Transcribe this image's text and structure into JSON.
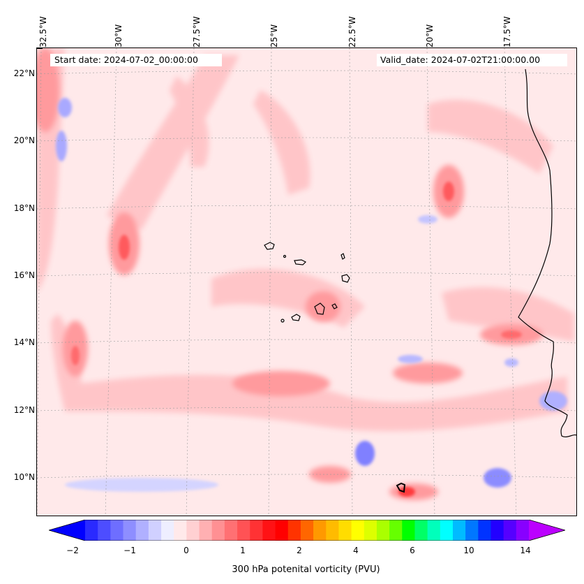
{
  "map": {
    "start_date": "Start date: 2024-07-02_00:00:00",
    "valid_date": "Valid_date: 2024-07-02T21:00:00.00",
    "longitude_labels": [
      "32.5°W",
      "30°W",
      "27.5°W",
      "25°W",
      "22.5°W",
      "20°W",
      "17.5°W"
    ],
    "latitude_labels": [
      "22°N",
      "20°N",
      "18°N",
      "16°N",
      "14°N",
      "12°N",
      "10°N"
    ],
    "background_color": "#ffe9ea"
  },
  "colorbar": {
    "label": "300 hPa potenital vorticity (PVU)",
    "tick_labels": [
      "−2",
      "−1",
      "0",
      "1",
      "2",
      "4",
      "6",
      "10",
      "14"
    ],
    "colors": [
      "#0000ff",
      "#2a2aff",
      "#4d4dff",
      "#6e6eff",
      "#8e8eff",
      "#b0b0ff",
      "#d0d0ff",
      "#eeeeff",
      "#ffe9ea",
      "#ffd0d2",
      "#ffb0b2",
      "#ff9093",
      "#ff7073",
      "#ff5255",
      "#ff3234",
      "#ff1215",
      "#ff0000",
      "#ff3300",
      "#ff6600",
      "#ff9900",
      "#ffbb00",
      "#ffdd00",
      "#ffff00",
      "#ddff00",
      "#aaff00",
      "#66ff00",
      "#00ff00",
      "#00ff66",
      "#00ffbb",
      "#00ffff",
      "#00bbff",
      "#0077ff",
      "#0033ff",
      "#2200ff",
      "#5500ff",
      "#8800ff",
      "#bb00ff"
    ]
  }
}
